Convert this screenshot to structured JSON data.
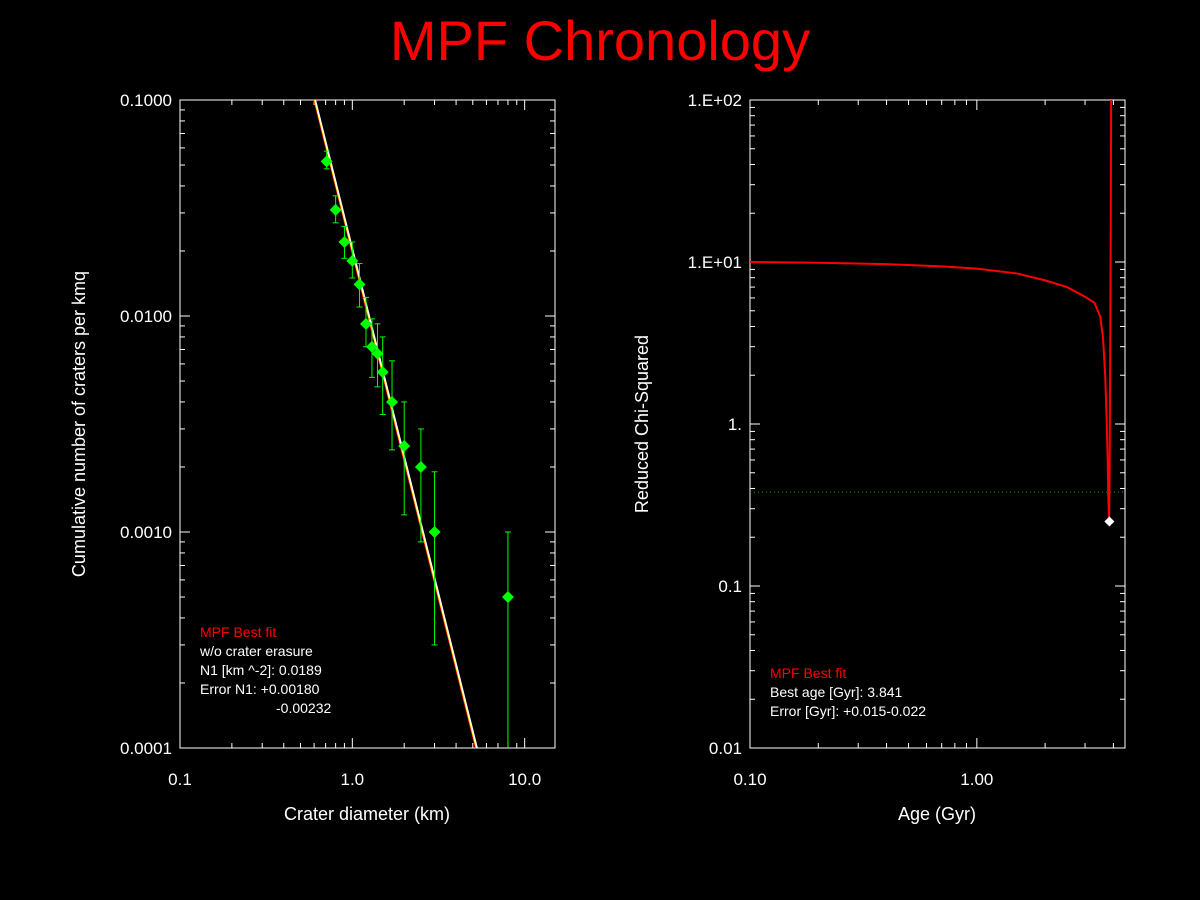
{
  "title": "MPF Chronology",
  "chart_data": [
    {
      "type": "scatter",
      "xscale": "log",
      "yscale": "log",
      "xlabel": "Crater diameter (km)",
      "ylabel": "Cumulative number of craters per kmq",
      "xlim": [
        0.1,
        15
      ],
      "ylim": [
        0.0001,
        0.1
      ],
      "x_ticks": [
        0.1,
        1.0,
        10.0
      ],
      "x_tick_labels": [
        "0.1",
        "1.0",
        "10.0"
      ],
      "y_ticks": [
        0.0001,
        0.001,
        0.01,
        0.1
      ],
      "y_tick_labels": [
        "0.0001",
        "0.0010",
        "0.0100",
        "0.1000"
      ],
      "series": [
        {
          "name": "data",
          "color": "#00ff00",
          "marker": "diamond",
          "points": [
            {
              "x": 0.71,
              "y": 0.052,
              "err_low": 0.004,
              "err_high": 0.006
            },
            {
              "x": 0.8,
              "y": 0.031,
              "err_low": 0.004,
              "err_high": 0.005
            },
            {
              "x": 0.9,
              "y": 0.022,
              "err_low": 0.0035,
              "err_high": 0.004
            },
            {
              "x": 1.0,
              "y": 0.018,
              "err_low": 0.003,
              "err_high": 0.004
            },
            {
              "x": 1.1,
              "y": 0.014,
              "err_low": 0.003,
              "err_high": 0.0035
            },
            {
              "x": 1.2,
              "y": 0.0092,
              "err_low": 0.002,
              "err_high": 0.003
            },
            {
              "x": 1.3,
              "y": 0.0072,
              "err_low": 0.002,
              "err_high": 0.0025
            },
            {
              "x": 1.4,
              "y": 0.0067,
              "err_low": 0.002,
              "err_high": 0.0025
            },
            {
              "x": 1.5,
              "y": 0.0055,
              "err_low": 0.002,
              "err_high": 0.0025
            },
            {
              "x": 1.7,
              "y": 0.004,
              "err_low": 0.0016,
              "err_high": 0.0022
            },
            {
              "x": 2.0,
              "y": 0.0025,
              "err_low": 0.0013,
              "err_high": 0.0015
            },
            {
              "x": 2.5,
              "y": 0.002,
              "err_low": 0.0011,
              "err_high": 0.001
            },
            {
              "x": 3.0,
              "y": 0.001,
              "err_low": 0.0007,
              "err_high": 0.0009
            },
            {
              "x": 8.0,
              "y": 0.0005,
              "err_low": 0.00049,
              "err_high": 0.0005
            }
          ]
        }
      ],
      "fit_lines": [
        {
          "color": "#ff0000",
          "points": [
            [
              0.6,
              0.1
            ],
            [
              5.2,
              0.0001
            ]
          ]
        },
        {
          "color": "#ffff00",
          "points": [
            [
              0.605,
              0.1
            ],
            [
              5.25,
              0.0001
            ]
          ]
        },
        {
          "color": "#ffffff",
          "points": [
            [
              0.61,
              0.1
            ],
            [
              5.3,
              0.0001
            ]
          ]
        }
      ],
      "annotations": [
        {
          "text": "MPF Best fit",
          "color": "#ff0000"
        },
        {
          "text": "w/o crater erasure",
          "color": "#ffffff"
        },
        {
          "text": "N1 [km ^-2]: 0.0189",
          "color": "#ffffff"
        },
        {
          "text": "Error N1: +0.00180",
          "color": "#ffffff"
        },
        {
          "text": "-0.00232",
          "color": "#ffffff"
        }
      ]
    },
    {
      "type": "line",
      "xscale": "log",
      "yscale": "log",
      "xlabel": "Age (Gyr)",
      "ylabel": "Reduced Chi-Squared",
      "xlim": [
        0.1,
        4.5
      ],
      "ylim": [
        0.01,
        100
      ],
      "x_ticks": [
        0.1,
        1.0
      ],
      "x_tick_labels": [
        "0.10",
        "1.00"
      ],
      "y_ticks": [
        0.01,
        0.1,
        1,
        10,
        100
      ],
      "y_tick_labels": [
        "0.01",
        "0.1",
        "1.",
        "1.E+01",
        "1.E+02"
      ],
      "series": [
        {
          "name": "Reduced Chi-Squared",
          "color": "#ff0000",
          "points": [
            [
              0.1,
              10.0
            ],
            [
              0.2,
              9.9
            ],
            [
              0.4,
              9.7
            ],
            [
              0.7,
              9.4
            ],
            [
              1.0,
              9.1
            ],
            [
              1.5,
              8.5
            ],
            [
              2.0,
              7.7
            ],
            [
              2.5,
              7.0
            ],
            [
              3.0,
              6.1
            ],
            [
              3.3,
              5.6
            ],
            [
              3.5,
              4.6
            ],
            [
              3.6,
              3.4
            ],
            [
              3.68,
              2.0
            ],
            [
              3.74,
              1.0
            ],
            [
              3.78,
              0.55
            ],
            [
              3.8,
              0.35
            ],
            [
              3.83,
              0.25
            ],
            [
              3.85,
              0.5
            ],
            [
              3.87,
              2.5
            ],
            [
              3.89,
              12
            ],
            [
              3.91,
              100
            ]
          ]
        }
      ],
      "threshold": {
        "y": 0.38,
        "color": "#00aa00",
        "style": "dotted"
      },
      "best_point": {
        "x": 3.841,
        "y": 0.25,
        "color": "#ffffff"
      },
      "annotations": [
        {
          "text": "MPF Best fit",
          "color": "#ff0000"
        },
        {
          "text": "Best age [Gyr]: 3.841",
          "color": "#ffffff"
        },
        {
          "text": "Error [Gyr]: +0.015-0.022",
          "color": "#ffffff"
        }
      ]
    }
  ]
}
